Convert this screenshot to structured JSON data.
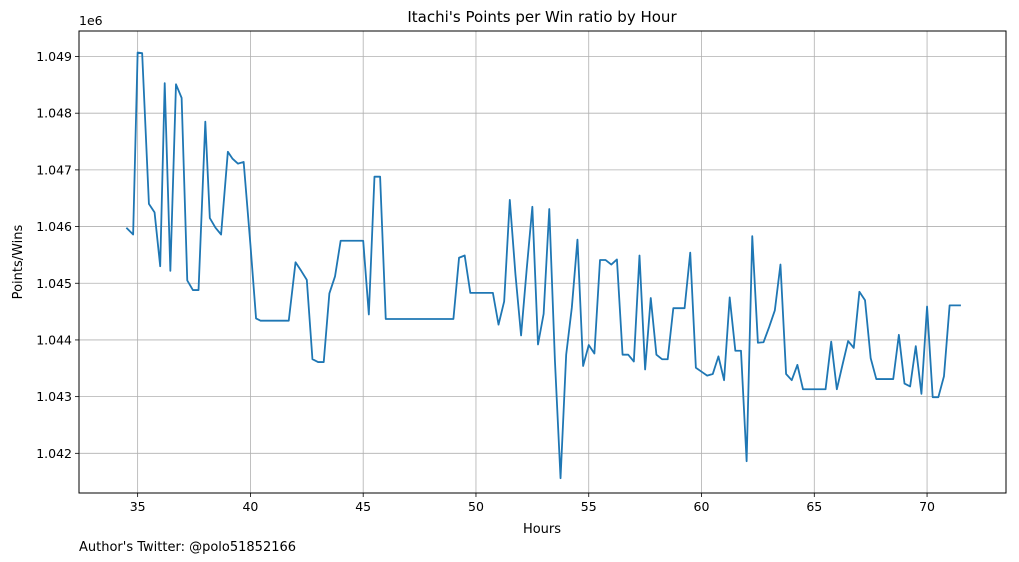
{
  "chart_data": {
    "type": "line",
    "title": "Itachi's Points per Win ratio by Hour",
    "xlabel": "Hours",
    "ylabel": "Points/Wins",
    "y_offset_text": "1e6",
    "footnote": "Author's Twitter: @polo51852166",
    "xlim": [
      32.4,
      73.5
    ],
    "ylim": [
      1041300,
      1049450
    ],
    "xticks": [
      35,
      40,
      45,
      50,
      55,
      60,
      65,
      70
    ],
    "yticks": [
      1042000,
      1043000,
      1044000,
      1045000,
      1046000,
      1047000,
      1048000,
      1049000
    ],
    "ytick_labels": [
      "1.042",
      "1.043",
      "1.044",
      "1.045",
      "1.046",
      "1.047",
      "1.048",
      "1.049"
    ],
    "grid": true,
    "line_color": "#1f77b4",
    "series": [
      {
        "x": [
          34.5,
          34.8,
          35.0,
          35.2,
          35.5,
          35.75,
          36.0,
          36.2,
          36.45,
          36.7,
          36.95,
          37.2,
          37.45,
          37.7,
          38.0,
          38.2,
          38.45,
          38.7,
          39.0,
          39.2,
          39.45,
          39.7,
          40.0,
          40.25,
          40.45,
          40.7,
          41.0,
          41.2,
          41.45,
          41.7,
          42.0,
          42.25,
          42.5,
          42.75,
          43.0,
          43.25,
          43.5,
          43.75,
          44.0,
          44.25,
          44.5,
          44.75,
          45.0,
          45.25,
          45.5,
          45.75,
          46.0,
          46.25,
          46.5,
          46.75,
          47.0,
          47.25,
          47.5,
          47.75,
          48.0,
          48.25,
          48.5,
          48.75,
          49.0,
          49.25,
          49.5,
          49.75,
          50.0,
          50.25,
          50.5,
          50.75,
          51.0,
          51.25,
          51.5,
          51.75,
          52.0,
          52.25,
          52.5,
          52.75,
          53.0,
          53.25,
          53.5,
          53.75,
          54.0,
          54.25,
          54.5,
          54.75,
          55.0,
          55.25,
          55.5,
          55.75,
          56.0,
          56.25,
          56.5,
          56.75,
          57.0,
          57.25,
          57.5,
          57.75,
          58.0,
          58.25,
          58.5,
          58.75,
          59.0,
          59.25,
          59.5,
          59.75,
          60.0,
          60.25,
          60.5,
          60.75,
          61.0,
          61.25,
          61.5,
          61.75,
          62.0,
          62.25,
          62.5,
          62.75,
          63.0,
          63.25,
          63.5,
          63.75,
          64.0,
          64.25,
          64.5,
          64.75,
          65.0,
          65.25,
          65.5,
          65.75,
          66.0,
          66.25,
          66.5,
          66.75,
          67.0,
          67.25,
          67.5,
          67.75,
          68.0,
          68.25,
          68.5,
          68.75,
          69.0,
          69.25,
          69.5,
          69.75,
          70.0,
          70.25,
          70.5,
          70.75,
          71.0,
          71.25,
          71.5
        ],
        "y": [
          1045980,
          1045860,
          1049070,
          1049060,
          1046400,
          1046250,
          1045300,
          1048530,
          1045220,
          1048510,
          1048270,
          1045050,
          1044880,
          1044880,
          1047850,
          1046150,
          1045980,
          1045860,
          1047320,
          1047200,
          1047110,
          1047140,
          1045680,
          1044380,
          1044340,
          1044340,
          1044340,
          1044340,
          1044340,
          1044340,
          1045370,
          1045220,
          1045060,
          1043660,
          1043610,
          1043610,
          1044820,
          1045120,
          1045750,
          1045750,
          1045750,
          1045750,
          1045750,
          1044450,
          1046880,
          1046880,
          1044370,
          1044370,
          1044370,
          1044370,
          1044370,
          1044370,
          1044370,
          1044370,
          1044370,
          1044370,
          1044370,
          1044370,
          1044370,
          1045450,
          1045490,
          1044830,
          1044830,
          1044830,
          1044830,
          1044830,
          1044270,
          1044680,
          1046470,
          1045160,
          1044080,
          1045250,
          1046350,
          1043920,
          1044460,
          1046310,
          1043640,
          1041560,
          1043740,
          1044570,
          1045770,
          1043540,
          1043910,
          1043760,
          1045410,
          1045410,
          1045330,
          1045420,
          1043740,
          1043740,
          1043620,
          1045490,
          1043480,
          1044740,
          1043740,
          1043660,
          1043660,
          1044560,
          1044560,
          1044560,
          1045540,
          1043510,
          1043440,
          1043370,
          1043400,
          1043710,
          1043290,
          1044750,
          1043810,
          1043810,
          1041860,
          1045830,
          1043950,
          1043960,
          1044230,
          1044520,
          1045330,
          1043400,
          1043290,
          1043560,
          1043130,
          1043130,
          1043130,
          1043130,
          1043130,
          1043970,
          1043130,
          1043560,
          1043980,
          1043860,
          1044850,
          1044700,
          1043680,
          1043310,
          1043310,
          1043310,
          1043310,
          1044090,
          1043230,
          1043180,
          1043890,
          1043050,
          1044590,
          1042990,
          1042990,
          1043360,
          1044610,
          1044610,
          1044610
        ]
      }
    ]
  }
}
